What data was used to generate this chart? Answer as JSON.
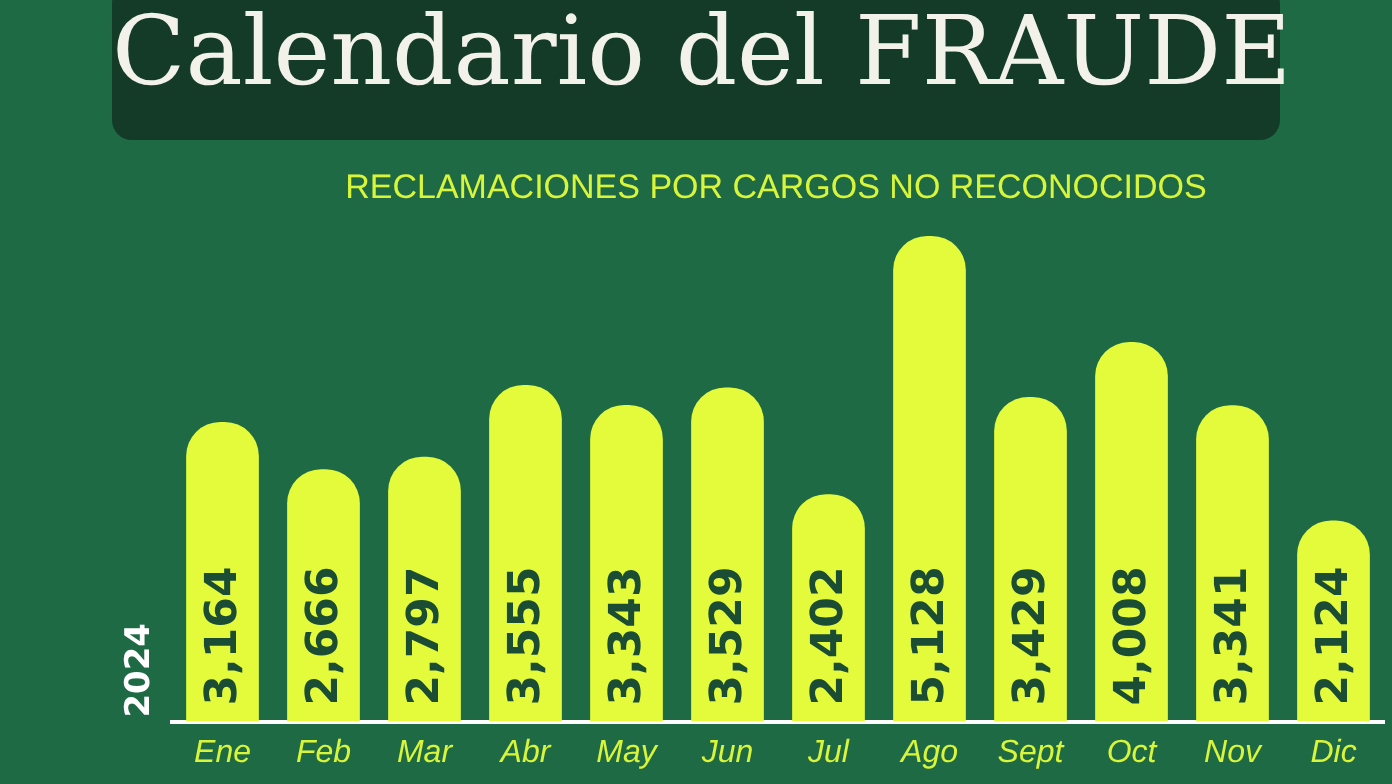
{
  "chart_data": {
    "type": "bar",
    "title": "Calendario del FRAUDE",
    "subtitle": "RECLAMACIONES POR CARGOS NO RECONOCIDOS",
    "ylabel": "2024",
    "categories": [
      "Ene",
      "Feb",
      "Mar",
      "Abr",
      "May",
      "Jun",
      "Jul",
      "Ago",
      "Sept",
      "Oct",
      "Nov",
      "Dic"
    ],
    "values": [
      3164,
      2666,
      2797,
      3555,
      3343,
      3529,
      2402,
      5128,
      3429,
      4008,
      3341,
      2124
    ],
    "value_labels": [
      "3,164",
      "2,666",
      "2,797",
      "3,555",
      "3,343",
      "3,529",
      "2,402",
      "5,128",
      "3,429",
      "4,008",
      "3,341",
      "2,124"
    ],
    "color": "#e4fb3c",
    "grid": false,
    "legend": false
  }
}
